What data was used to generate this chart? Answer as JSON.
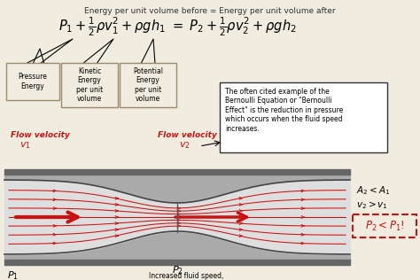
{
  "bg_color": "#f0ece0",
  "title_text": "Energy per unit volume before = Energy per unit volume after",
  "label1": "Pressure\nEnergy",
  "label2": "Kinetic\nEnergy\nper unit\nvolume",
  "label3": "Potential\nEnergy\nper unit\nvolume",
  "flow_v1_line1": "Flow velocity",
  "flow_v1_line2": "v",
  "flow_v2_line1": "Flow velocity",
  "flow_v2_line2": "v",
  "note": "The often cited example of the\nBernoulli Equation or \"Bernoulli\nEffect\" is the reduction in pressure\nwhich occurs when the fluid speed\nincreases.",
  "right_text1": "A",
  "right_text2": "v",
  "right_text3": "P",
  "p1_label": "P",
  "p2_label": "P",
  "bottom_text": "Increased fluid speed,\ndecreased internal pressure.",
  "red_color": "#cc1111",
  "box_border": "#9b8b6a",
  "tube_outer_color": "#888888",
  "tube_wall_color": "#555555",
  "tube_inner_color": "#d8d8d8",
  "tube_light_color": "#e8e8e8"
}
